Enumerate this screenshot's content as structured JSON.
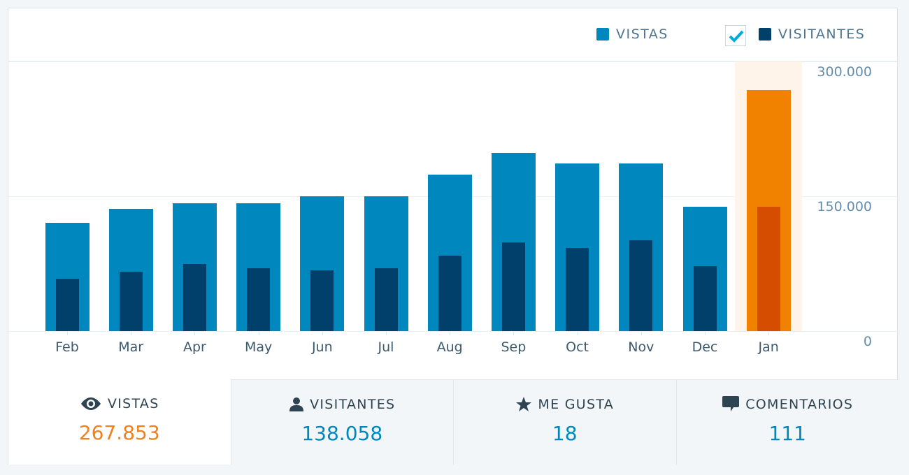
{
  "legend": {
    "views_label": "VISTAS",
    "visitors_label": "VISITANTES",
    "visitors_checked": true,
    "views_color": "#0087be",
    "visitors_color": "#00406a"
  },
  "y_axis": {
    "ticks": [
      {
        "value": 300000,
        "label": "300.000"
      },
      {
        "value": 150000,
        "label": "150.000"
      },
      {
        "value": 0,
        "label": "0"
      }
    ]
  },
  "tabs": [
    {
      "icon": "eye-icon",
      "label": "VISTAS",
      "value": "267.853",
      "active": true
    },
    {
      "icon": "person-icon",
      "label": "VISITANTES",
      "value": "138.058",
      "active": false
    },
    {
      "icon": "star-icon",
      "label": "ME GUSTA",
      "value": "18",
      "active": false
    },
    {
      "icon": "comment-icon",
      "label": "COMENTARIOS",
      "value": "111",
      "active": false
    }
  ],
  "colors": {
    "views": "#0087be",
    "visitors": "#00406a",
    "highlight_views": "#f08200",
    "highlight_visitors": "#d54e00",
    "highlight_bg": "#fef4ea",
    "active_value": "#f0821e"
  },
  "chart_data": {
    "type": "bar",
    "title": "",
    "xlabel": "",
    "ylabel": "",
    "ylim": [
      0,
      300000
    ],
    "grid": true,
    "legend_position": "top-right",
    "categories": [
      "Feb",
      "Mar",
      "Apr",
      "May",
      "Jun",
      "Jul",
      "Aug",
      "Sep",
      "Oct",
      "Nov",
      "Dec",
      "Jan"
    ],
    "series": [
      {
        "name": "VISTAS",
        "values": [
          120500,
          136000,
          142000,
          142000,
          150000,
          150000,
          174000,
          198000,
          186500,
          186500,
          138000,
          267853
        ]
      },
      {
        "name": "VISITANTES",
        "values": [
          58000,
          66000,
          74500,
          70000,
          68000,
          70000,
          84000,
          98500,
          92500,
          101000,
          72000,
          138058
        ]
      }
    ],
    "highlighted_category": "Jan",
    "y_tick_labels": [
      "0",
      "150.000",
      "300.000"
    ]
  }
}
